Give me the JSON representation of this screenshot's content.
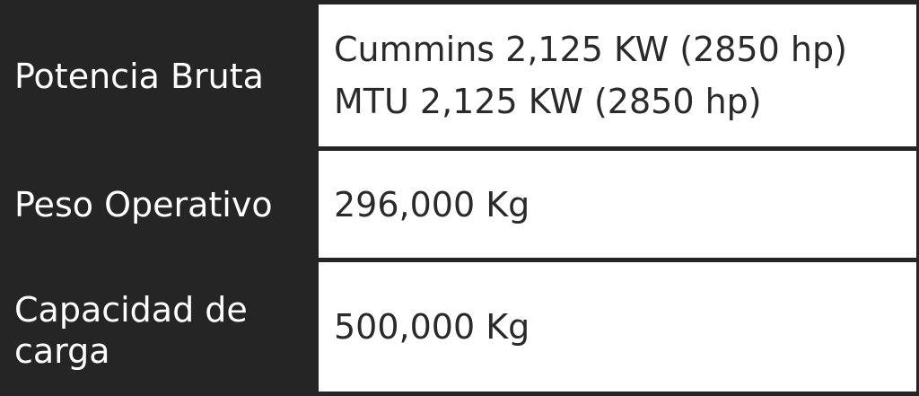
{
  "table": {
    "rows": [
      {
        "label": "Potencia Bruta",
        "values": [
          "Cummins 2,125 KW (2850 hp)",
          "MTU 2,125 KW (2850 hp)"
        ]
      },
      {
        "label": "Peso Operativo",
        "values": [
          "296,000 Kg"
        ]
      },
      {
        "label": "Capacidad de carga",
        "values": [
          "500,000 Kg"
        ]
      }
    ]
  },
  "colors": {
    "label_background": "#252525",
    "label_text": "#ffffff",
    "value_background": "#ffffff",
    "value_text": "#2a2a2a"
  }
}
